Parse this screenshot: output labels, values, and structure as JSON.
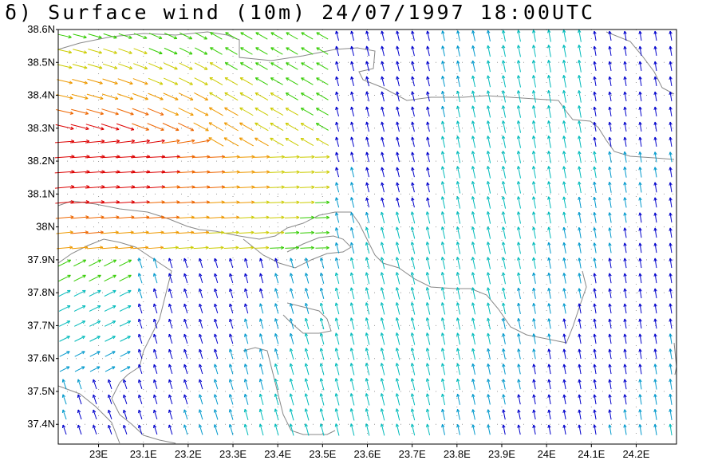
{
  "title": "δ) Surface wind (10m) 24/07/1997 18:00UTC",
  "map": {
    "lat_range": [
      37.34,
      38.6
    ],
    "lon_range": [
      22.91,
      24.29
    ],
    "lat_labels": [
      "38.6N",
      "38.5N",
      "38.4N",
      "38.3N",
      "38.2N",
      "38.1N",
      "38N",
      "37.9N",
      "37.8N",
      "37.7N",
      "37.6N",
      "37.5N",
      "37.4N"
    ],
    "lat_values": [
      38.6,
      38.5,
      38.4,
      38.3,
      38.2,
      38.1,
      38.0,
      37.9,
      37.8,
      37.7,
      37.6,
      37.5,
      37.4
    ],
    "lon_labels": [
      "23E",
      "23.1E",
      "23.2E",
      "23.3E",
      "23.4E",
      "23.5E",
      "23.6E",
      "23.7E",
      "23.8E",
      "23.9E",
      "24E",
      "24.1E",
      "24.2E"
    ],
    "lon_values": [
      23.0,
      23.1,
      23.2,
      23.3,
      23.4,
      23.5,
      23.6,
      23.7,
      23.8,
      23.9,
      24.0,
      24.1,
      24.2
    ],
    "grid": "dotted",
    "wind_colors": {
      "very_strong": "#dd0000",
      "strong": "#ee6600",
      "fresh": "#ee9900",
      "moderate_high": "#cccc00",
      "moderate": "#33cc00",
      "light": "#00bbbb",
      "weak": "#0099cc",
      "calm": "#0000cc",
      "low": "#8800cc"
    },
    "coastline_color": "#888888"
  }
}
